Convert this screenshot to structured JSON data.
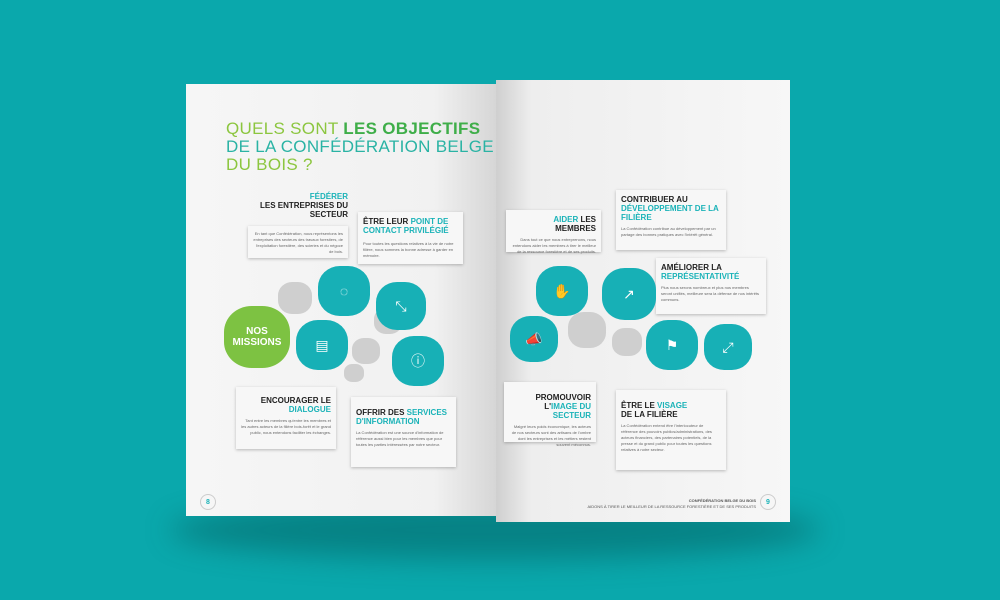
{
  "left_page": {
    "title": {
      "part1": "QUELS SONT ",
      "part2": "LES OBJECTIFS",
      "part3": "DE LA CONFÉDÉRATION BELGE",
      "part4": "DU BOIS ?"
    },
    "center_label": "NOS MISSIONS",
    "items": [
      {
        "accent": "FÉDÉRER",
        "title": "LES ENTREPRISES DU SECTEUR",
        "body": "En tant que Confédération, nous représentons les entreprises des secteurs des travaux forestiers, de l'exploitation forestière, des scieries et du négoce de bois."
      },
      {
        "title": "ÊTRE LEUR ",
        "accent": "POINT DE CONTACT PRIVILÉGIÉ",
        "body": "Pour toutes les questions relatives à la vie de notre filière, nous sommes la bonne adresse à garder en mémoire."
      },
      {
        "title": "ENCOURAGER LE ",
        "accent": "DIALOGUE",
        "body": "Tant entre les membres qu'entre les membres et les autres acteurs de la filière bois-forêt et le grand public, nous entendons faciliter les échanges."
      },
      {
        "title": "OFFRIR DES ",
        "accent": "SERVICES D'INFORMATION",
        "body": "La Confédération est une source d'information de référence aussi bien pour les membres que pour toutes les parties intéressées par notre secteur."
      }
    ],
    "page_number": "8"
  },
  "right_page": {
    "items": [
      {
        "accent": "AIDER",
        "title": " LES MEMBRES",
        "body": "Dans tout ce que nous entreprenons, nous entendons aider les membres à tirer le meilleur de la ressource forestière et de ses produits."
      },
      {
        "title": "CONTRIBUER AU ",
        "accent": "DÉVELOPPEMENT DE LA FILIÈRE",
        "body": "La Confédération contribue au développement par un partage des bonnes pratiques avec l'intérêt général."
      },
      {
        "title": "AMÉLIORER LA ",
        "accent": "REPRÉSENTATIVITÉ",
        "body": "Plus nous serons nombreux et plus nos membres seront unifiés, meilleure sera la défense de nos intérêts communs."
      },
      {
        "title": "PROMOUVOIR L'",
        "accent": "IMAGE DU SECTEUR",
        "body": "Malgré leurs poids économique, les acteurs de nos secteurs sont des artisans de l'ombre dont les entreprises et les métiers restent souvent méconnus."
      },
      {
        "title": "ÊTRE LE ",
        "accent": "VISAGE",
        "title2": "DE LA FILIÈRE",
        "body": "La Confédération entend être l'interlocuteur de référence des pouvoirs publics/administrations, des acteurs financiers, des partenaires potentiels, de la presse et du grand public pour toutes les questions relatives à notre secteur."
      }
    ],
    "footer": {
      "line1": "CONFÉDÉRATION BELGE DU BOIS",
      "line2": "AIDONS À TIRER LE MEILLEUR DE LA RESSOURCE FORESTIÈRE ET DE SES PRODUITS"
    },
    "page_number": "9"
  },
  "colors": {
    "background": "#0aa8ac",
    "teal": "#17b0b6",
    "green": "#7dc242"
  },
  "icons": [
    "circle-dots-icon",
    "arrows-inward-icon",
    "chat-bubbles-icon",
    "info-icon",
    "handshake-icon",
    "trend-arrow-icon",
    "megaphone-icon",
    "presenter-icon",
    "arrows-outward-icon"
  ]
}
